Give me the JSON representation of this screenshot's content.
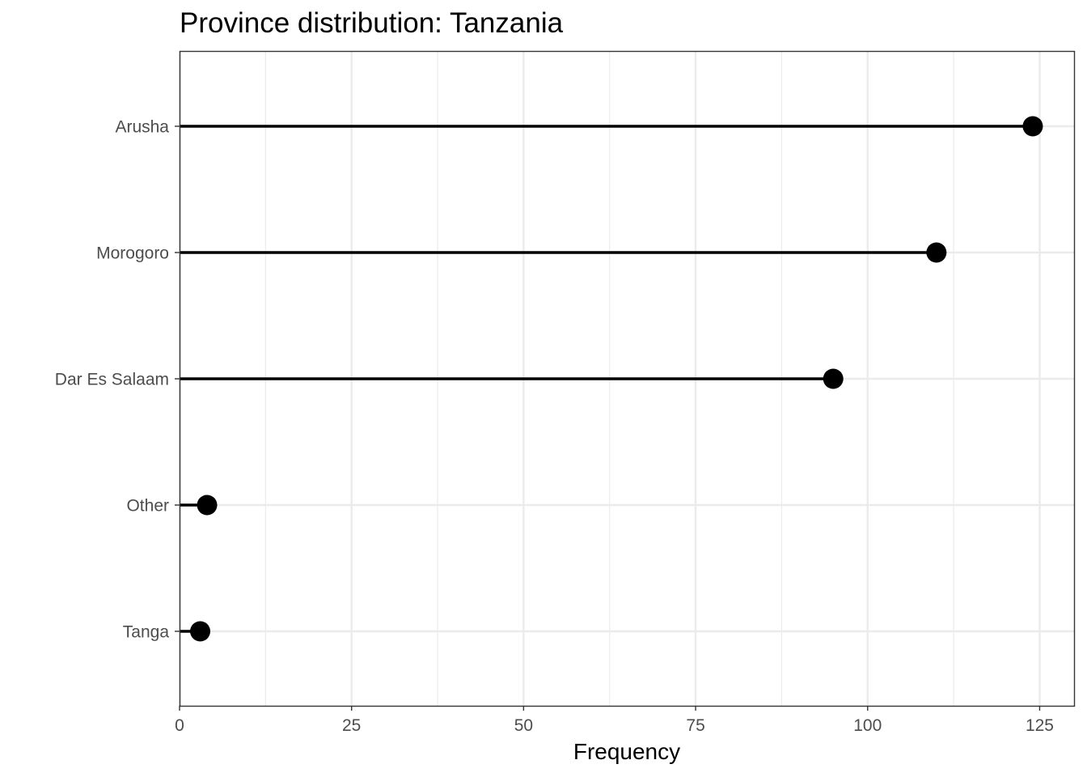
{
  "chart_data": {
    "type": "lollipop",
    "title": "Province distribution: Tanzania",
    "xlabel": "Frequency",
    "ylabel": "",
    "categories": [
      "Arusha",
      "Morogoro",
      "Dar Es Salaam",
      "Other",
      "Tanga"
    ],
    "values": [
      124,
      110,
      95,
      4,
      3
    ],
    "xlim": [
      0,
      130
    ],
    "x_ticks": [
      0,
      25,
      50,
      75,
      100,
      125
    ],
    "x_minor_ticks": [
      12.5,
      37.5,
      62.5,
      87.5,
      112.5
    ],
    "grid": true,
    "legend": "none",
    "colors": {
      "mark": "#000000",
      "grid": "#ebebeb",
      "panel_border": "#333333",
      "tick_label": "#4d4d4d"
    }
  }
}
